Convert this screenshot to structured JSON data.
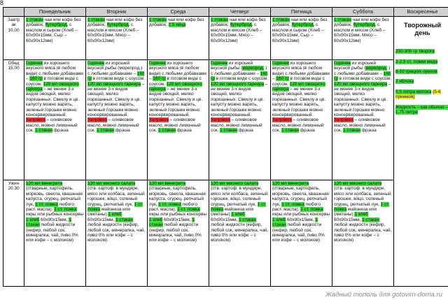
{
  "corner": "8",
  "days": [
    "Понедельник",
    "Вторник",
    "Среда",
    "Четверг",
    "Пятница",
    "Суббота",
    "Воскресенье"
  ],
  "meals": {
    "breakfast": [
      "Завтр",
      "ак",
      "10.00"
    ],
    "lunch": [
      "Обед",
      "15.00"
    ],
    "dinner": [
      "Ужин",
      "20.30"
    ]
  },
  "colors": {
    "green": "#3ee03e",
    "red": "#ff3a3a",
    "yellow": "#f5f12e",
    "header": "#d0d0d0"
  },
  "cells": {
    "b": [
      [
        [
          "g",
          "1 стакан"
        ],
        [
          "",
          "  чая или кофе без добавок, "
        ],
        [
          "g",
          "бутерброд"
        ],
        [
          "",
          ", с маслом и сыром (Хлеб – 60х90х15мм, Сыр – 60х90х12мм)"
        ]
      ],
      [
        [
          "g",
          "1 стакан"
        ],
        [
          "",
          "  чая или кофе без добавок, "
        ],
        [
          "g",
          "бутерброд"
        ],
        [
          "",
          ", с маслом и мясом (Хлеб – 60х90х15мм, Мясо – 60х90х12мм)"
        ]
      ],
      [
        [
          "g",
          "1 стакан"
        ],
        [
          "",
          "  чая или кофе без добавок, "
        ],
        [
          "g",
          "2,5 яйца"
        ]
      ],
      [
        [
          "g",
          "1 стакан"
        ],
        [
          "",
          "  чая или кофе без добавок, "
        ],
        [
          "g",
          "бутерброд"
        ],
        [
          "",
          ", с маслом и мясом (Хлеб – 60х90х15мм, Мясо – 60х90х12мм)"
        ]
      ],
      [
        [
          "g",
          "1 стакан"
        ],
        [
          "",
          "  чая или кофе без добавок, "
        ],
        [
          "g",
          "бутерброд"
        ],
        [
          "",
          ", с маслом и сыром (Хлеб – 60х90х15мм, Сыр – 60х90х12мм)"
        ]
      ],
      [
        [
          "g",
          "1 стакан"
        ],
        [
          "",
          "  чая или кофе без добавок, "
        ],
        [
          "g",
          "бутерброд"
        ],
        [
          "",
          ", с маслом и мясом (Хлеб – 60х90х15мм, Мясо – 60х90х12мм)"
        ]
      ]
    ],
    "l": [
      [
        [
          "g",
          "Горячее"
        ],
        [
          "",
          " из хорошего вкусного мяса (в любом виде) с любыми добавками – "
        ],
        [
          "g",
          "160 гр"
        ],
        [
          "",
          " в готовом виде с соусом. "
        ],
        [
          "g",
          "120 мл овощного гарнира"
        ],
        [
          "",
          " – не менее 3-х видов овощей, мелко порезанных. Свеклу и цв. капусту можно варить, зеленый горошек можно консервированный. "
        ],
        [
          "r",
          "Заправка"
        ],
        [
          "",
          " – оливковое масло, можно лимонный сок. "
        ],
        [
          "g",
          "1 стакан"
        ],
        [
          "",
          " фрэша"
        ]
      ],
      [
        [
          "g",
          "Горячее"
        ],
        [
          "",
          " из хорошей вкусной рыбы (морепрод.) с любыми добавками – "
        ],
        [
          "g",
          "160 гр"
        ],
        [
          "",
          " в готовом виде с соусом. "
        ],
        [
          "g",
          "120 мл овощного гарнира"
        ],
        [
          "",
          " – не менее 3-х видов овощей, мелко порезанных. Свеклу и цв. капусту можно варить, зеленый горошек можно консервированный. "
        ],
        [
          "r",
          "Заправка"
        ],
        [
          "",
          " – оливковое масло, можно лимонный сок. "
        ],
        [
          "g",
          "1 стакан"
        ],
        [
          "",
          " фрэша"
        ]
      ],
      [
        [
          "g",
          "Горячее"
        ],
        [
          "",
          " из хорошего вкусного мяса (в любом виде) с любыми добавками – "
        ],
        [
          "g",
          "160 гр"
        ],
        [
          "",
          " в готовом виде с соусом. "
        ],
        [
          "g",
          "120 мл овощного гарнира"
        ],
        [
          "",
          " – не менее 3-х видов овощей, мелко порезанных. Свеклу и цв. капусту можно варить, зеленый горошек можно консервированный. "
        ],
        [
          "r",
          "Заправка"
        ],
        [
          "",
          " – оливковое масло, можно лимонный сок. "
        ],
        [
          "g",
          "1 стакан"
        ],
        [
          "",
          " фрэша"
        ]
      ],
      [
        [
          "g",
          "Горячее"
        ],
        [
          "",
          " из хорошей вкусной рыбы ("
        ],
        [
          "g",
          "морепрод."
        ],
        [
          "",
          " ) с любыми добавками – "
        ],
        [
          "g",
          "160 гр"
        ],
        [
          "",
          " в готовом виде с соусом. "
        ],
        [
          "g",
          "120 мл овощного гарнира"
        ],
        [
          "",
          " – не менее 3-х видов овощей, мелко порезанных. Свеклу и цв. капусту можно варить, зеленый горошек можно консервированный. "
        ],
        [
          "r",
          "Заправка"
        ],
        [
          "",
          " – оливковое масло, можно лимонный сок. "
        ],
        [
          "g",
          "1 стакан"
        ],
        [
          "",
          " фрэша"
        ]
      ],
      [
        [
          "g",
          "Горячее"
        ],
        [
          "",
          " из хорошего вкусного мяса (в любом виде) с любыми добавками – "
        ],
        [
          "g",
          "160 гр"
        ],
        [
          "",
          " в готовом виде с соусом. "
        ],
        [
          "g",
          "120 мл овощного гарнира"
        ],
        [
          "",
          " – не менее 3-х видов овощей, мелко порезанных. Свеклу и цв. капусту можно варить, зеленый горошек можно консервированный. "
        ],
        [
          "r",
          "Заправка"
        ],
        [
          "",
          " – оливковое масло, можно лимонный сок. "
        ],
        [
          "g",
          "1 стакан"
        ],
        [
          "",
          " фрэша"
        ]
      ],
      [
        [
          "g",
          "Горячее"
        ],
        [
          "",
          " из хорошей вкусной рыбы ("
        ],
        [
          "g",
          "морепрод."
        ],
        [
          "",
          " ) с любыми добавками – "
        ],
        [
          "g",
          "160 гр"
        ],
        [
          "",
          " в готовом виде с соусом. "
        ],
        [
          "g",
          "120 мл овощного гарнира"
        ],
        [
          "",
          " – не менее 3-х видов овощей, мелко порезанных. Свеклу и цв. капусту можно варить, зеленый горошек можно консервированный. "
        ],
        [
          "r",
          "Заправка"
        ],
        [
          "",
          " – оливковое масло, можно лимонный сок. "
        ],
        [
          "g",
          "1 стакан"
        ],
        [
          "",
          " фрэша"
        ]
      ]
    ],
    "d": [
      [
        [
          "g",
          "120 мл винегрета"
        ],
        [
          "",
          " (отварные, картофель, морковь, свекла, квашеная капуста, огурец, репчатый лук, "
        ],
        [
          "g",
          "1 ст. ложка"
        ],
        [
          "",
          " любого раст. масла). "
        ],
        [
          "g",
          "1 ст. ложка"
        ],
        [
          "",
          " икры или рыбных консервы "
        ],
        [
          "g",
          "1 хлеб"
        ],
        [
          "",
          " 60х90х15мм, "
        ],
        [
          "g",
          "1 стакан"
        ],
        [
          "",
          " любой жидкости (кефир, любой сок, минералка, чай, пиво 0% или кофе – с молоком)"
        ]
      ],
      [
        [
          "g",
          "120 мл мясного салата"
        ],
        [
          "",
          " (отв. картоф. в мундире, мясо или колбаса, зеленый горошек, яйцо, соленый огурец, репчатый лук, "
        ],
        [
          "g",
          "1 ст. ложка"
        ],
        [
          "",
          " майонеза или сметаны) "
        ],
        [
          "g",
          "1 хлеб"
        ],
        [
          "",
          " 60х90х15мм, "
        ],
        [
          "g",
          "1 стакан"
        ],
        [
          "",
          " любой жидкости (кефир, любой сок, минералка, чай, пиво 0% или кофе – с молоком)"
        ]
      ],
      [
        [
          "g",
          "120 мл винегрета"
        ],
        [
          "",
          " (отварные, картофель, морковь, свекла, квашеная капуста, огурец, репчатый лук, "
        ],
        [
          "g",
          "1 ст. ложка"
        ],
        [
          "",
          " любого раст. масла). "
        ],
        [
          "g",
          "1 ст. ложка"
        ],
        [
          "",
          " икры или рыбных консервы "
        ],
        [
          "g",
          "1 хлеб"
        ],
        [
          "",
          " 60х90х15мм, "
        ],
        [
          "g",
          "1 стакан"
        ],
        [
          "",
          " любой жидкости (кефир, любой сок, минералка, чай, пиво 0% или кофе – с молоком)"
        ]
      ],
      [
        [
          "g",
          "120 мл мясного салата"
        ],
        [
          "",
          " (отв. картоф. в мундире, мясо или колбаса, зеленый горошек, яйцо, соленый огурец, репчатый лук, "
        ],
        [
          "g",
          "1 ст. ложка"
        ],
        [
          "",
          " майонеза или сметаны) "
        ],
        [
          "g",
          "1 хлеб"
        ],
        [
          "",
          " 60х90х15мм, "
        ],
        [
          "g",
          "1 стакан"
        ],
        [
          "",
          " любой жидкости (кефир, любой сок, минералка, чай, пиво 0% или кофе – с молоком)"
        ]
      ],
      [
        [
          "g",
          "120 мл винегрета"
        ],
        [
          "",
          " (отварные, картофель, морковь, свекла, квашеная капуста, огурец, репчатый лук, "
        ],
        [
          "g",
          "1 ст. ложка"
        ],
        [
          "",
          " любого раст. масла). "
        ],
        [
          "g",
          "1 ст. ложка"
        ],
        [
          "",
          " икры или рыбных консервы "
        ],
        [
          "g",
          "1 хлеб"
        ],
        [
          "",
          " 60х90х15мм, "
        ],
        [
          "g",
          "1 стакан"
        ],
        [
          "",
          " любой жидкости (кефир, любой сок, минералка, чай, пиво 0% или кофе – с молоком)"
        ]
      ],
      [
        [
          "g",
          "120 мл мясного салата"
        ],
        [
          "",
          " (отв. картоф. в мундире, мясо или колбаса, зеленый горошек, яйцо, соленый огурец, репчатый лук, "
        ],
        [
          "g",
          "1 ст. ложка"
        ],
        [
          "",
          " майонеза или сметаны) "
        ],
        [
          "g",
          "1 хлеб"
        ],
        [
          "",
          " 60х90х15мм, "
        ],
        [
          "g",
          "1 стакан"
        ],
        [
          "",
          " любой жидкости (кефир, любой сок, минералка, чай, пиво 0% или кофе – с молоком)"
        ]
      ]
    ]
  },
  "sunday": {
    "title": "Творожный день",
    "items": [
      [
        [
          "g",
          "250-300 гр творога"
        ]
      ],
      [
        [
          "g",
          "2-2,5 ст. ложки меда"
        ]
      ],
      [
        [
          "g",
          "8-10 грецких орехов"
        ]
      ],
      [
        [
          "g",
          "2 яблока"
        ]
      ],
      [
        [
          "g",
          "0,5 литра молока"
        ],
        [
          "",
          " "
        ],
        [
          "y",
          "(5-6 приемов)"
        ]
      ],
      [
        [
          "g",
          "Жидкость – как обычно – 1,75 литра"
        ]
      ]
    ]
  },
  "watermark": "Жадный тополь для gotovim-doma.ru"
}
